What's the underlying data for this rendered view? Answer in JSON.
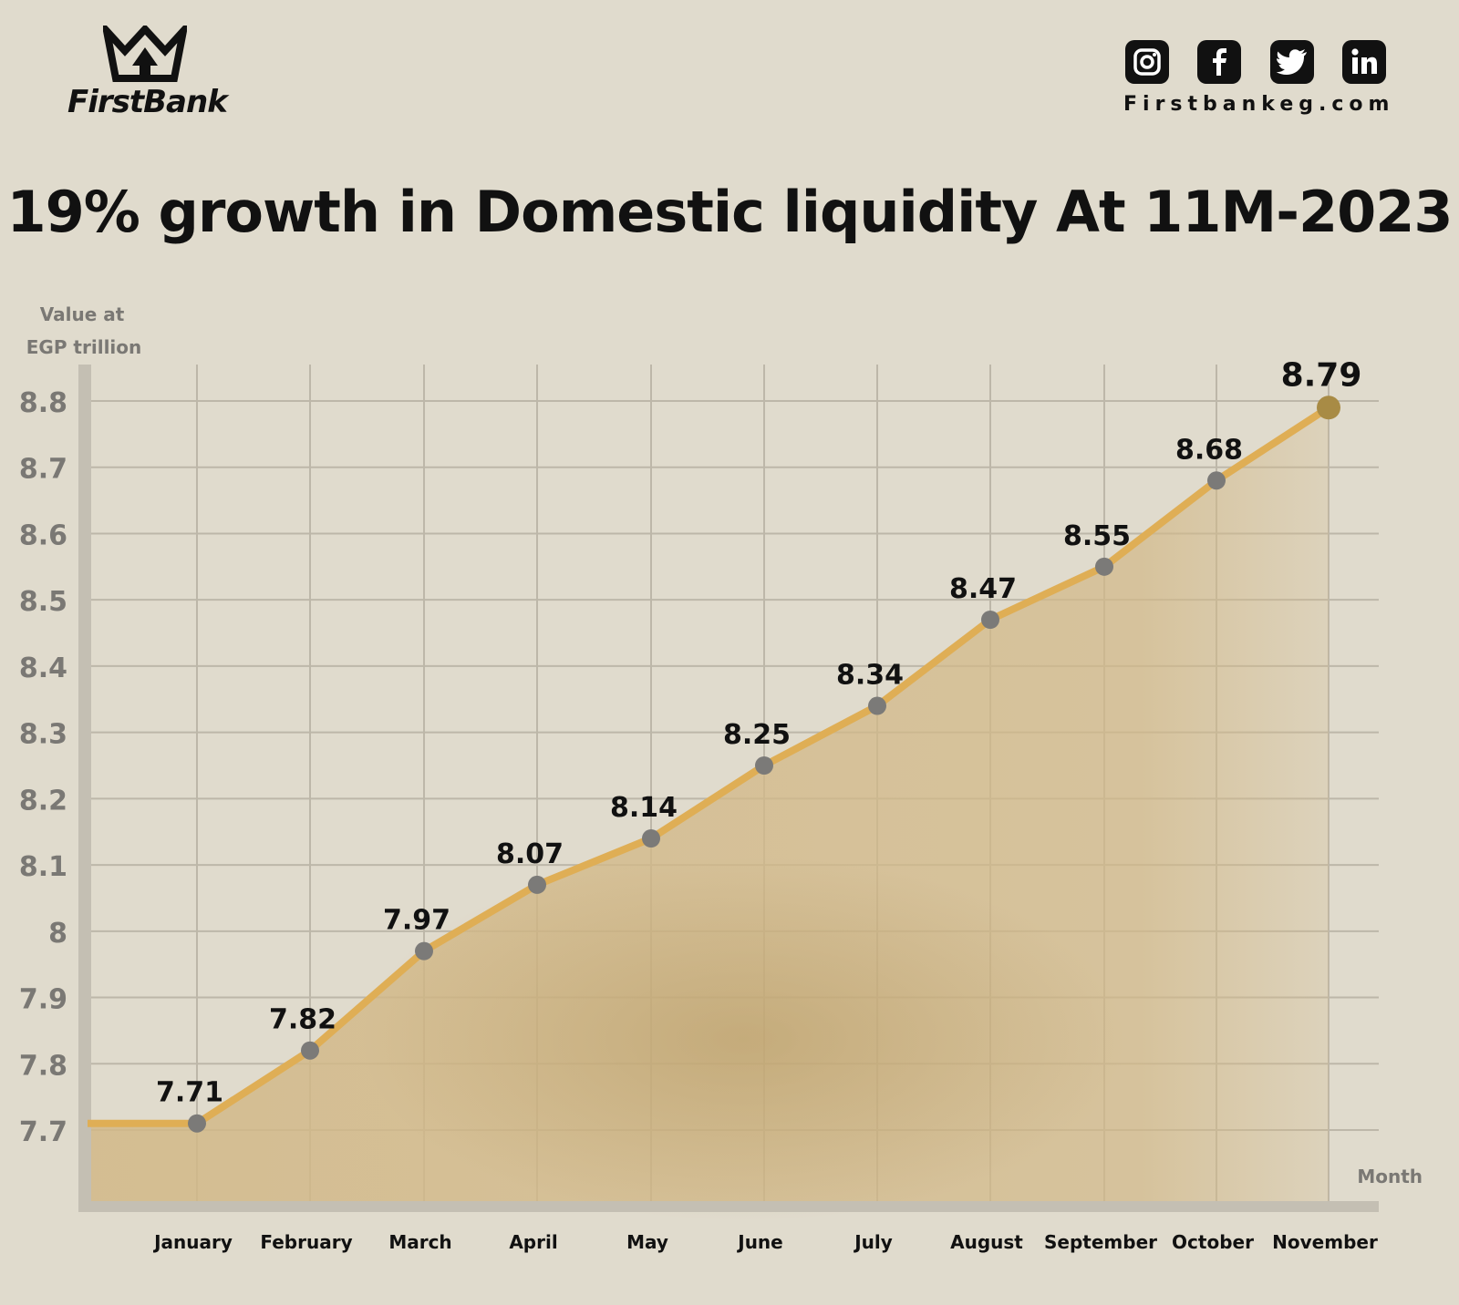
{
  "brand": {
    "name": "FirstBank",
    "website": "Firstbankeg.com",
    "social": [
      {
        "name": "instagram",
        "icon": "instagram-icon"
      },
      {
        "name": "facebook",
        "icon": "facebook-icon"
      },
      {
        "name": "twitter",
        "icon": "twitter-icon"
      },
      {
        "name": "linkedin",
        "icon": "linkedin-icon"
      }
    ]
  },
  "colors": {
    "background": "#e0dbcd",
    "line": "#dfae55",
    "area": "#d2b887",
    "marker": "#7b7a78",
    "last_marker": "#a88b45",
    "grid": "#bdb7a9",
    "axis": "#c4bfb3",
    "tick_text": "#7a7874"
  },
  "chart_data": {
    "type": "area",
    "title": "19% growth in Domestic liquidity At 11M-2023",
    "ylabel": [
      "Value at",
      "EGP trillion"
    ],
    "xlabel": "Month",
    "categories": [
      "January",
      "February",
      "March",
      "April",
      "May",
      "June",
      "July",
      "August",
      "September",
      "October",
      "November"
    ],
    "series": [
      {
        "values": [
          7.71,
          7.82,
          7.97,
          8.07,
          8.14,
          8.25,
          8.34,
          8.47,
          8.55,
          8.68,
          8.79
        ]
      }
    ],
    "ylim": [
      7.6,
      8.85
    ],
    "yticks": [
      "7.7",
      "7.8",
      "7.9",
      "8",
      "8.1",
      "8.2",
      "8.3",
      "8.4",
      "8.5",
      "8.6",
      "8.7",
      "8.8"
    ],
    "ytick_values": [
      7.7,
      7.8,
      7.9,
      8.0,
      8.1,
      8.2,
      8.3,
      8.4,
      8.5,
      8.6,
      8.7,
      8.8
    ],
    "data_labels": [
      "7.71",
      "7.82",
      "7.97",
      "8.07",
      "8.14",
      "8.25",
      "8.34",
      "8.47",
      "8.55",
      "8.68",
      "8.79"
    ],
    "grid": true
  }
}
